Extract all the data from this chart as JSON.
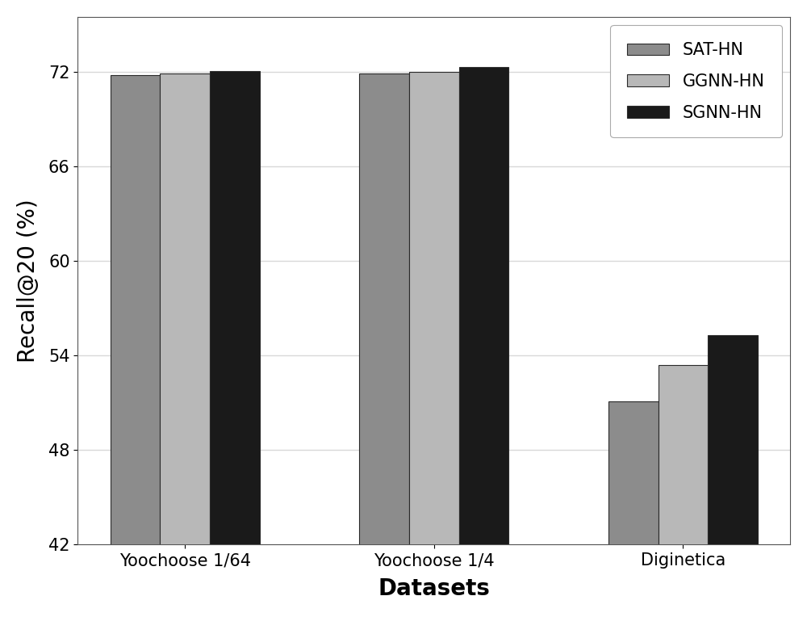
{
  "categories": [
    "Yoochoose 1/64",
    "Yoochoose 1/4",
    "Diginetica"
  ],
  "series": [
    {
      "name": "SAT-HN",
      "values": [
        71.8,
        71.9,
        51.1
      ],
      "color": "#8c8c8c"
    },
    {
      "name": "GGNN-HN",
      "values": [
        71.9,
        72.0,
        53.4
      ],
      "color": "#b8b8b8"
    },
    {
      "name": "SGNN-HN",
      "values": [
        72.05,
        72.3,
        55.3
      ],
      "color": "#1a1a1a"
    }
  ],
  "ylabel": "Recall@20 (%)",
  "xlabel": "Datasets",
  "ylim": [
    42,
    75.5
  ],
  "yticks": [
    42,
    48,
    54,
    60,
    66,
    72
  ],
  "bar_width": 0.2,
  "figsize": [
    10.0,
    7.64
  ],
  "dpi": 100,
  "legend_fontsize": 15,
  "axis_label_fontsize": 20,
  "tick_fontsize": 15,
  "background_color": "#ffffff",
  "grid_color": "#d8d8d8",
  "edge_color": "#2a2a2a"
}
